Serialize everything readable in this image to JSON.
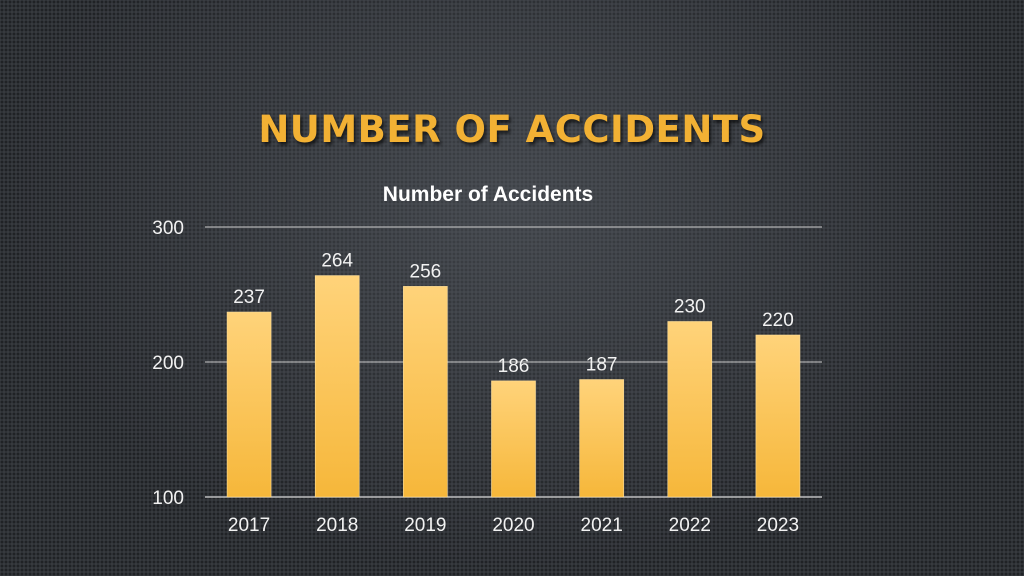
{
  "slide": {
    "title": "NUMBER OF ACCIDENTS"
  },
  "colors": {
    "title": "#f2b134",
    "bar_top": "#ffd37a",
    "bar_bottom": "#f6b73a",
    "background": "#2f3237"
  },
  "chart_data": {
    "type": "bar",
    "title": "Number of Accidents",
    "xlabel": "",
    "ylabel": "",
    "categories": [
      "2017",
      "2018",
      "2019",
      "2020",
      "2021",
      "2022",
      "2023"
    ],
    "values": [
      237,
      264,
      256,
      186,
      187,
      230,
      220
    ],
    "ylim": [
      100,
      300
    ],
    "yticks": [
      "100",
      "200",
      "300"
    ],
    "grid": true,
    "legend": "none",
    "data_labels": true
  }
}
